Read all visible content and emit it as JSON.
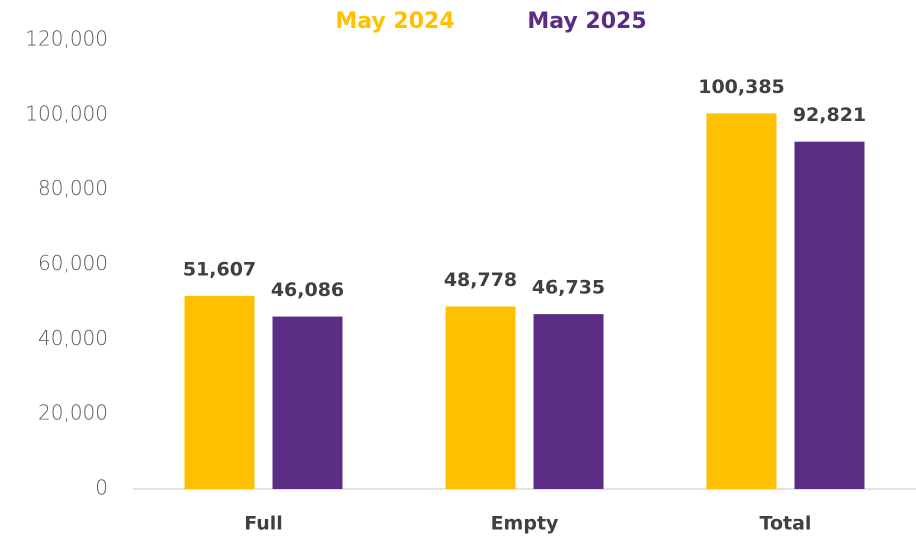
{
  "chart_data": {
    "type": "bar",
    "categories": [
      "Full",
      "Empty",
      "Total"
    ],
    "series": [
      {
        "name": "May 2024",
        "color": "#FFC000",
        "values": [
          51607,
          48778,
          100385
        ],
        "value_labels": [
          "51,607",
          "48,778",
          "100,385"
        ]
      },
      {
        "name": "May 2025",
        "color": "#5B2C83",
        "values": [
          46086,
          46735,
          92821
        ],
        "value_labels": [
          "46,086",
          "46,735",
          "92,821"
        ]
      }
    ],
    "ylim": [
      0,
      120000
    ],
    "yticks": [
      0,
      {
        "value": 20000,
        "label": "20,000"
      },
      {
        "value": 40000,
        "label": "40,000"
      },
      {
        "value": 60000,
        "label": "60,000"
      },
      {
        "value": 80000,
        "label": "80,000"
      },
      {
        "value": 100000,
        "label": "100,000"
      },
      {
        "value": 120000,
        "label": "120,000"
      }
    ],
    "grid": false,
    "legend": "top"
  }
}
